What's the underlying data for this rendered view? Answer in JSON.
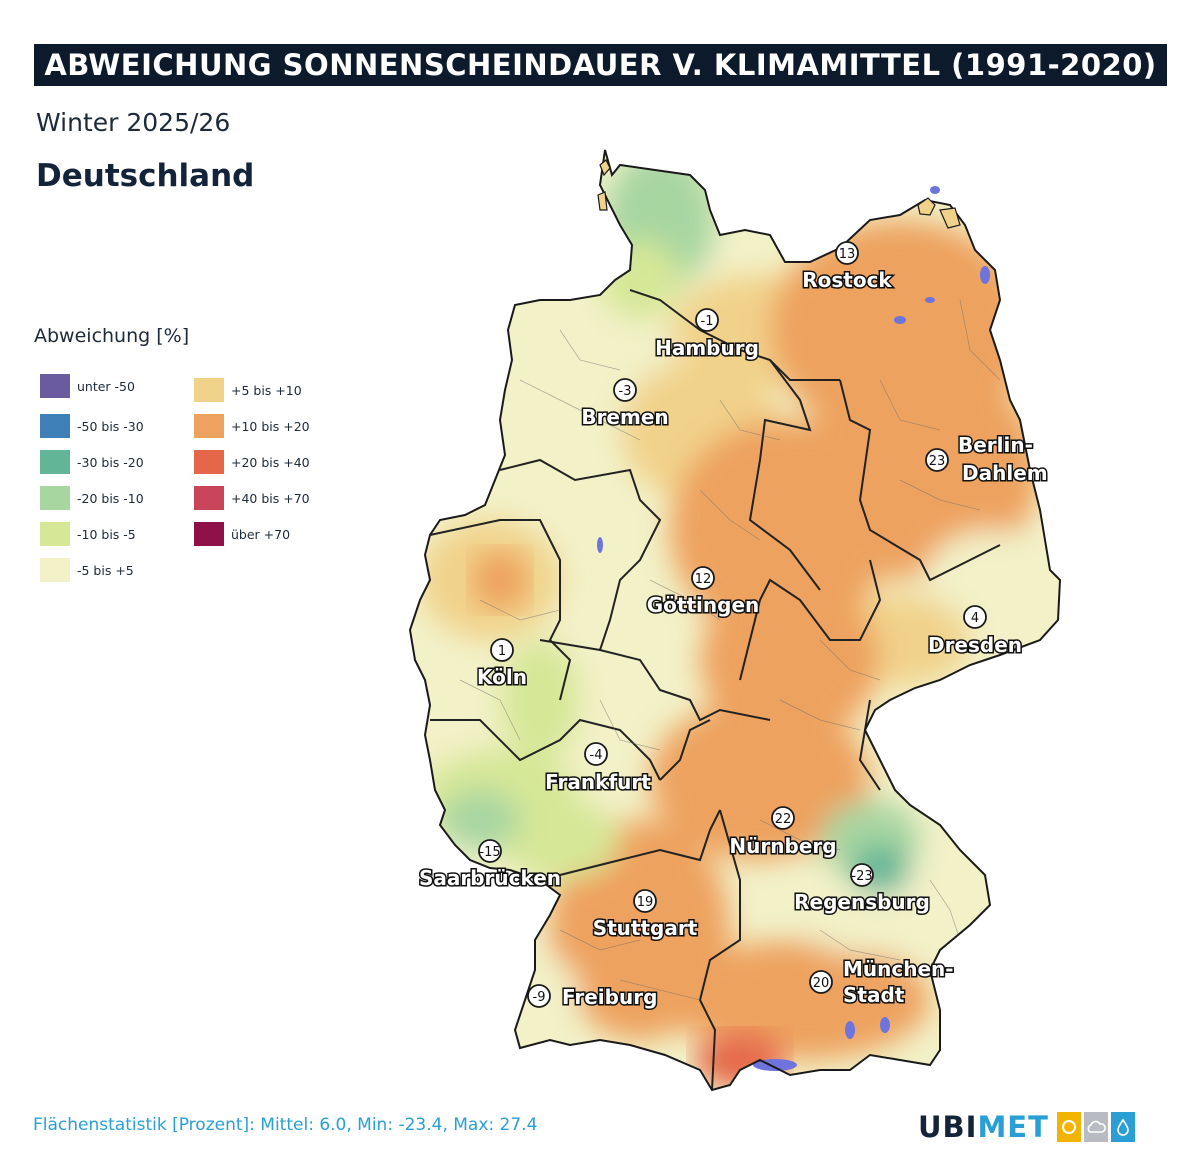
{
  "header": {
    "title": "ABWEICHUNG SONNENSCHEINDAUER V. KLIMAMITTEL (1991-2020)",
    "subtitle": "Winter 2025/26",
    "region": "Deutschland"
  },
  "legend": {
    "title": "Abweichung [%]",
    "items": [
      {
        "label": "unter -50",
        "color": "#6a5a9e"
      },
      {
        "label": "-50 bis -30",
        "color": "#3f7fb8"
      },
      {
        "label": "-30 bis -20",
        "color": "#62b597"
      },
      {
        "label": "-20 bis -10",
        "color": "#a7d6a1"
      },
      {
        "label": "-10 bis -5",
        "color": "#d6e797"
      },
      {
        "label": "-5 bis +5",
        "color": "#f2f1c8"
      },
      {
        "label": "+5 bis +10",
        "color": "#f1d28a"
      },
      {
        "label": "+10 bis +20",
        "color": "#eea25f"
      },
      {
        "label": "+20 bis +40",
        "color": "#e5674a"
      },
      {
        "label": "+40 bis +70",
        "color": "#c9465a"
      },
      {
        "label": "über +70",
        "color": "#8d1048"
      }
    ]
  },
  "stations": [
    {
      "name": "Rostock",
      "value": "13"
    },
    {
      "name": "Hamburg",
      "value": "-1"
    },
    {
      "name": "Bremen",
      "value": "-3"
    },
    {
      "name": "Berlin-",
      "name2": "Dahlem",
      "value": "23"
    },
    {
      "name": "Göttingen",
      "value": "12"
    },
    {
      "name": "Dresden",
      "value": "4"
    },
    {
      "name": "Köln",
      "value": "1"
    },
    {
      "name": "Frankfurt",
      "value": "-4"
    },
    {
      "name": "Nürnberg",
      "value": "22"
    },
    {
      "name": "Saarbrücken",
      "value": "-15"
    },
    {
      "name": "Regensburg",
      "value": "-23"
    },
    {
      "name": "Stuttgart",
      "value": "19"
    },
    {
      "name": "München-",
      "name2": "Stadt",
      "value": "20"
    },
    {
      "name": "Freiburg",
      "value": "-9"
    }
  ],
  "footer": {
    "statistics": "Flächenstatistik [Prozent]: Mittel: 6.0, Min: -23.4, Max: 27.4",
    "brand_a": "UBI",
    "brand_b": "MET"
  }
}
